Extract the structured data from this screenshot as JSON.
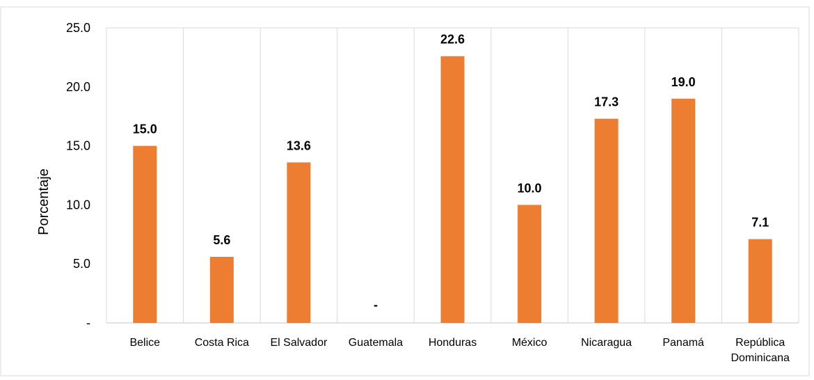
{
  "chart_data": {
    "type": "bar",
    "title": "",
    "xlabel": "",
    "ylabel": "Porcentaje",
    "categories": [
      "Belice",
      "Costa Rica",
      "El Salvador",
      "Guatemala",
      "Honduras",
      "México",
      "Nicaragua",
      "Panamá",
      "República Dominicana"
    ],
    "category_lines": [
      [
        "Belice"
      ],
      [
        "Costa Rica"
      ],
      [
        "El Salvador"
      ],
      [
        "Guatemala"
      ],
      [
        "Honduras"
      ],
      [
        "México"
      ],
      [
        "Nicaragua"
      ],
      [
        "Panamá"
      ],
      [
        "República",
        "Dominicana"
      ]
    ],
    "values": [
      15.0,
      5.6,
      13.6,
      null,
      22.6,
      10.0,
      17.3,
      19.0,
      7.1
    ],
    "data_labels": [
      "15.0",
      "5.6",
      "13.6",
      "-",
      "22.6",
      "10.0",
      "17.3",
      "19.0",
      "7.1"
    ],
    "ylim": [
      0,
      25
    ],
    "yticks": [
      0,
      5,
      10,
      15,
      20,
      25
    ],
    "ytick_labels": [
      "-",
      "5.0",
      "10.0",
      "15.0",
      "20.0",
      "25.0"
    ],
    "grid": "vertical",
    "bar_color": "#ED7D31",
    "grid_color": "#D9D9D9",
    "frame_color": "#D9D9D9"
  }
}
